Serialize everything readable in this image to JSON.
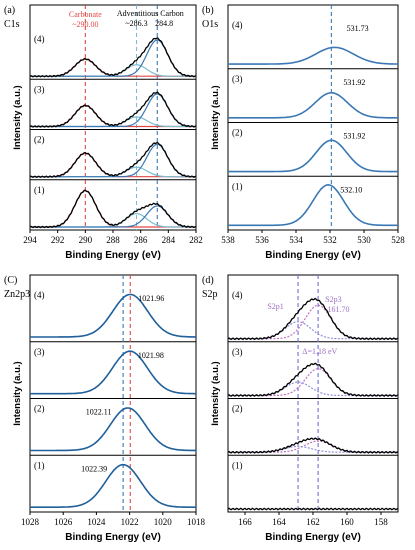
{
  "chart_data": [
    {
      "panel": "(a)",
      "element": "C1s",
      "type": "line",
      "xlabel": "Binding Energy (eV)",
      "ylabel": "Intensity (a.u.)",
      "xlim": [
        294,
        282
      ],
      "xticks": [
        294,
        292,
        290,
        288,
        286,
        284,
        282
      ],
      "ref_lines": [
        {
          "x": 290.0,
          "color": "#e04848"
        },
        {
          "x": 286.3,
          "color": "#7bbcd0"
        },
        {
          "x": 284.8,
          "color": "#3a78b5"
        }
      ],
      "annotations": [
        {
          "text": "Carbonate",
          "color": "#e04848"
        },
        {
          "text": "~290.00",
          "color": "#e04848"
        },
        {
          "text": "Adventitious Carbon",
          "color": "#000000"
        },
        {
          "text": "~286.3",
          "color": "#000000"
        },
        {
          "text": "284.8",
          "color": "#000000"
        }
      ],
      "series": [
        {
          "name": "(4)",
          "peaks": [
            {
              "center": 290.0,
              "height": 0.45,
              "width": 0.75,
              "color": "#e04848"
            },
            {
              "center": 286.3,
              "height": 0.3,
              "width": 0.75,
              "color": "#7bbcd0"
            },
            {
              "center": 284.8,
              "height": 0.95,
              "width": 0.75,
              "color": "#3a78b5"
            }
          ]
        },
        {
          "name": "(3)",
          "peaks": [
            {
              "center": 290.0,
              "height": 0.55,
              "width": 0.75,
              "color": "#e04848"
            },
            {
              "center": 286.3,
              "height": 0.25,
              "width": 0.75,
              "color": "#7bbcd0"
            },
            {
              "center": 284.8,
              "height": 0.85,
              "width": 0.75,
              "color": "#3a78b5"
            }
          ]
        },
        {
          "name": "(2)",
          "peaks": [
            {
              "center": 290.0,
              "height": 0.62,
              "width": 0.75,
              "color": "#e04848"
            },
            {
              "center": 286.3,
              "height": 0.25,
              "width": 0.75,
              "color": "#7bbcd0"
            },
            {
              "center": 284.8,
              "height": 0.85,
              "width": 0.75,
              "color": "#3a78b5"
            }
          ]
        },
        {
          "name": "(1)",
          "peaks": [
            {
              "center": 290.0,
              "height": 0.95,
              "width": 0.75,
              "color": "#e04848"
            },
            {
              "center": 286.3,
              "height": 0.35,
              "width": 0.75,
              "color": "#7bbcd0"
            },
            {
              "center": 284.8,
              "height": 0.55,
              "width": 0.75,
              "color": "#3a78b5"
            }
          ]
        }
      ]
    },
    {
      "panel": "(b)",
      "element": "O1s",
      "type": "line",
      "xlabel": "Binding Energy (eV)",
      "ylabel": "Intensity (a.u.)",
      "xlim": [
        538,
        528
      ],
      "xticks": [
        538,
        536,
        534,
        532,
        530,
        528
      ],
      "ref_lines": [
        {
          "x": 531.92,
          "color": "#3a78b5"
        }
      ],
      "series": [
        {
          "name": "(4)",
          "peak": 531.73,
          "label": "531.73",
          "height": 0.4,
          "width": 1.1,
          "color": "#3a78b5"
        },
        {
          "name": "(3)",
          "peak": 531.92,
          "label": "531.92",
          "height": 0.6,
          "width": 0.95,
          "color": "#3a78b5"
        },
        {
          "name": "(2)",
          "peak": 531.92,
          "label": "531.92",
          "height": 0.75,
          "width": 0.9,
          "color": "#3a78b5"
        },
        {
          "name": "(1)",
          "peak": 532.1,
          "label": "532.10",
          "height": 0.97,
          "width": 0.9,
          "color": "#3a78b5"
        }
      ]
    },
    {
      "panel": "(C)",
      "element": "Zn2p3",
      "type": "line",
      "xlabel": "Binding Energy (eV)",
      "ylabel": "Intensity (a.u.)",
      "xlim": [
        1028,
        1018
      ],
      "xticks": [
        1028,
        1026,
        1024,
        1022,
        1020,
        1018
      ],
      "ref_lines": [
        {
          "x": 1022.39,
          "color": "#3a78b5"
        },
        {
          "x": 1021.96,
          "color": "#e04848"
        }
      ],
      "series": [
        {
          "name": "(4)",
          "peak": 1021.96,
          "label": "1021.96",
          "height": 0.95,
          "width": 1.05,
          "color": "#1f5f9a"
        },
        {
          "name": "(3)",
          "peak": 1021.98,
          "label": "1021.98",
          "height": 0.95,
          "width": 1.05,
          "color": "#1f5f9a"
        },
        {
          "name": "(2)",
          "peak": 1022.11,
          "label": "1022.11",
          "height": 0.95,
          "width": 1.05,
          "color": "#1f5f9a"
        },
        {
          "name": "(1)",
          "peak": 1022.39,
          "label": "1022.39",
          "height": 0.95,
          "width": 1.05,
          "color": "#1f5f9a"
        }
      ]
    },
    {
      "panel": "(d)",
      "element": "S2p",
      "type": "line",
      "xlabel": "Binding Energy (eV)",
      "ylabel": "Intensity (a.u.)",
      "xlim": [
        167,
        157
      ],
      "xticks": [
        166,
        164,
        162,
        160,
        158
      ],
      "ref_lines": [
        {
          "x": 162.88,
          "color": "#7070d0"
        },
        {
          "x": 161.7,
          "color": "#7070d0"
        }
      ],
      "annotations": [
        {
          "text": "S2p1",
          "color": "#a070c8"
        },
        {
          "text": "S2p3",
          "color": "#a070c8"
        },
        {
          "text": "161.70",
          "color": "#a070c8"
        },
        {
          "text": "Δ=1.18 eV",
          "color": "#a070c8"
        }
      ],
      "series": [
        {
          "name": "(4)",
          "peaks": [
            {
              "center": 161.7,
              "height": 0.75,
              "width": 0.75,
              "color": "#c070c0"
            },
            {
              "center": 162.88,
              "height": 0.38,
              "width": 0.75,
              "color": "#9090d8"
            }
          ]
        },
        {
          "name": "(3)",
          "peaks": [
            {
              "center": 161.7,
              "height": 0.6,
              "width": 0.75,
              "color": "#c070c0"
            },
            {
              "center": 162.88,
              "height": 0.3,
              "width": 0.75,
              "color": "#9090d8"
            }
          ]
        },
        {
          "name": "(2)",
          "peaks": [
            {
              "center": 161.7,
              "height": 0.25,
              "width": 0.8,
              "color": "#c070c0"
            },
            {
              "center": 162.88,
              "height": 0.13,
              "width": 0.8,
              "color": "#9090d8"
            }
          ]
        },
        {
          "name": "(1)",
          "peaks": []
        }
      ]
    }
  ]
}
